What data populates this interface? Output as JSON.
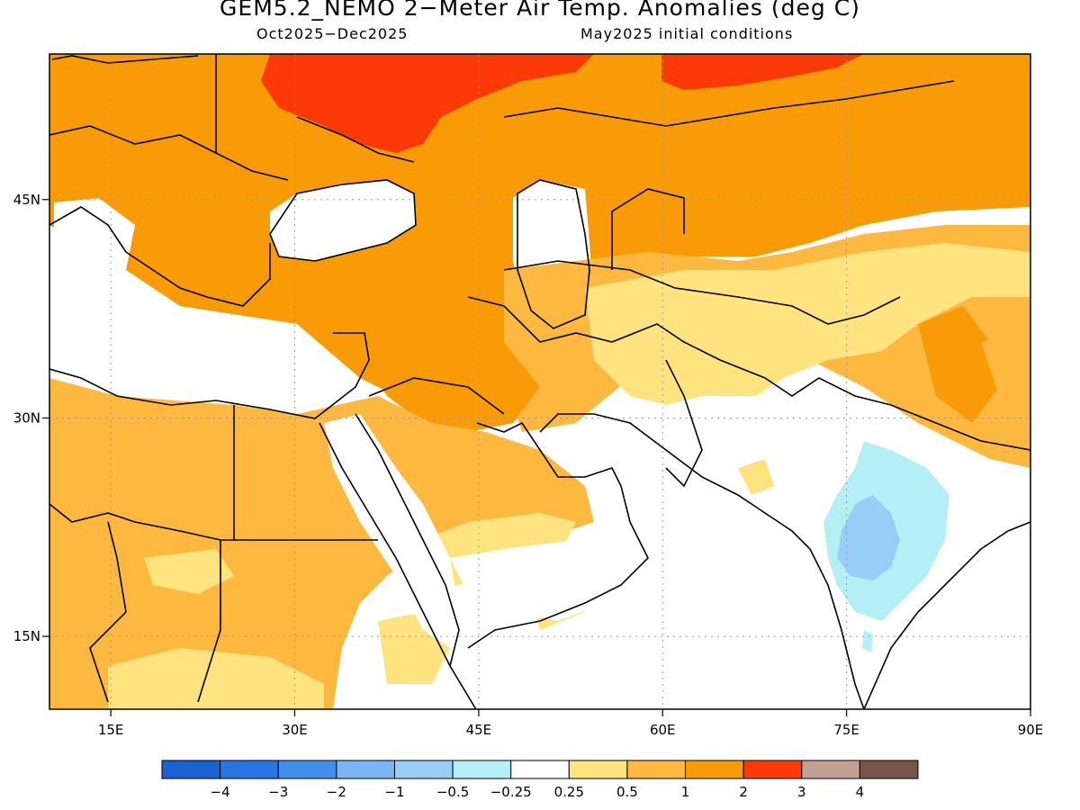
{
  "title": "GEM5.2_NEMO 2−Meter Air Temp. Anomalies (deg C)",
  "period": "Oct2025−Dec2025",
  "init": "May2025 initial conditions",
  "map": {
    "lon_range": [
      10,
      90
    ],
    "lat_range": [
      10,
      55
    ],
    "lon_ticks": [
      {
        "value": 15,
        "label": "15E"
      },
      {
        "value": 30,
        "label": "30E"
      },
      {
        "value": 45,
        "label": "45E"
      },
      {
        "value": 60,
        "label": "60E"
      },
      {
        "value": 75,
        "label": "75E"
      },
      {
        "value": 90,
        "label": "90E"
      }
    ],
    "lat_ticks": [
      {
        "value": 45,
        "label": "45N"
      },
      {
        "value": 30,
        "label": "30N"
      },
      {
        "value": 15,
        "label": "15N"
      }
    ]
  },
  "legend": {
    "colors": [
      "#1a62d1",
      "#2a75e3",
      "#4390ec",
      "#79b6f2",
      "#97cdf6",
      "#b3eff4",
      "#ffffff",
      "#fee37f",
      "#fcb83f",
      "#f99b06",
      "#fb3a05",
      "#c2a190",
      "#795548"
    ],
    "labels": [
      "−4",
      "−3",
      "−2",
      "−1",
      "−0.5",
      "−0.25",
      "0.25",
      "0.5",
      "1",
      "2",
      "3",
      "4"
    ]
  }
}
